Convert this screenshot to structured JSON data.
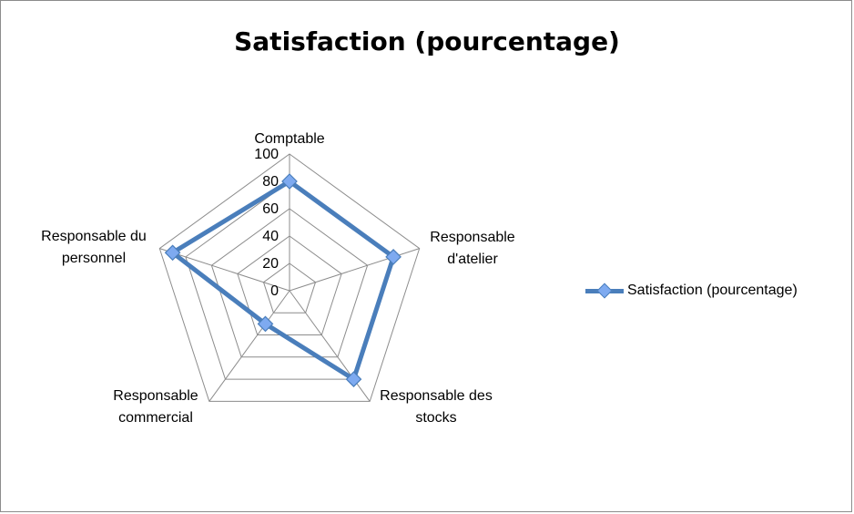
{
  "chart_data": {
    "type": "radar",
    "title": "Satisfaction (pourcentage)",
    "categories": [
      [
        "Comptable"
      ],
      [
        "Responsable",
        "d'atelier"
      ],
      [
        "Responsable des",
        "stocks"
      ],
      [
        "Responsable",
        "commercial"
      ],
      [
        "Responsable du",
        "personnel"
      ]
    ],
    "series": [
      {
        "name": "Satisfaction (pourcentage)",
        "values": [
          80,
          80,
          80,
          30,
          90
        ],
        "color": "#4a7ebb",
        "marker_color": "#7eaaf0"
      }
    ],
    "r_ticks": [
      "0",
      "20",
      "40",
      "60",
      "80",
      "100"
    ],
    "r_range": [
      0,
      100
    ],
    "grid": true,
    "legend": "right"
  }
}
